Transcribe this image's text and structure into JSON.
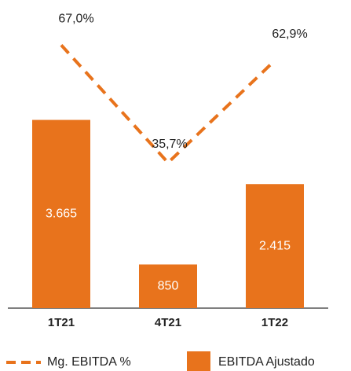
{
  "chart_data": {
    "type": "bar",
    "categories": [
      "1T21",
      "4T21",
      "1T22"
    ],
    "series": [
      {
        "name": "EBITDA Ajustado",
        "type": "bar",
        "color": "#e8731c",
        "values": [
          3665,
          850,
          2415
        ],
        "value_labels": [
          "3.665",
          "850",
          "2.415"
        ]
      },
      {
        "name": "Mg. EBITDA %",
        "type": "line",
        "axis": "y2",
        "color": "#e8731c",
        "values": [
          67.0,
          35.7,
          62.9
        ],
        "value_labels": [
          "67,0%",
          "35,7%",
          "62,9%"
        ]
      }
    ],
    "ylim": [
      0,
      6000
    ],
    "y2lim": [
      -3,
      79
    ],
    "grid": false,
    "legend": "bottom"
  }
}
